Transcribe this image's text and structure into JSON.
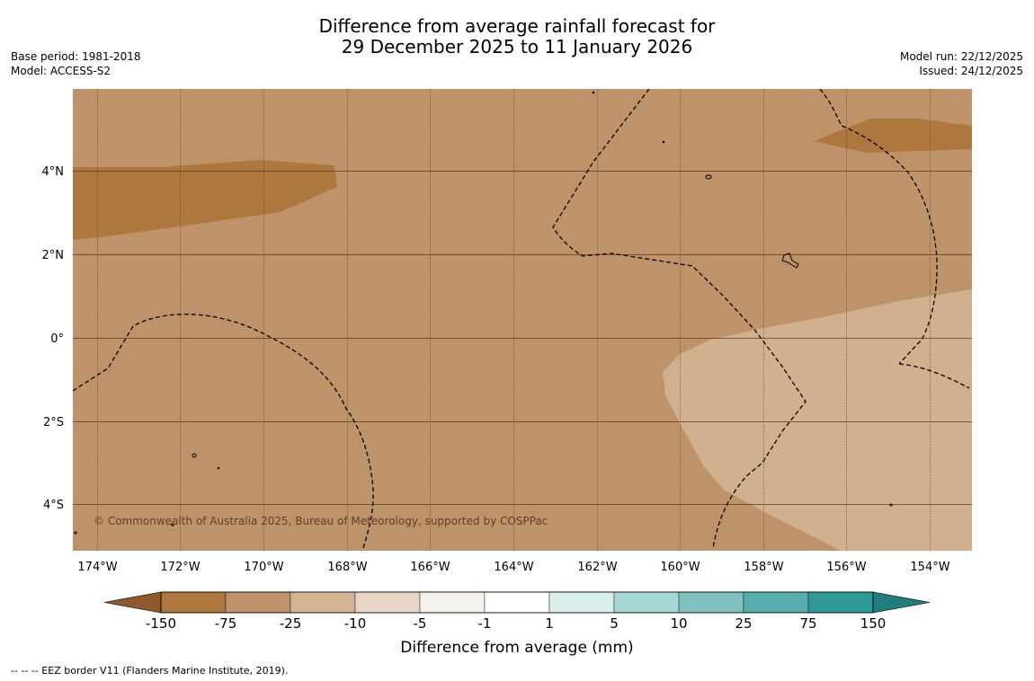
{
  "title": {
    "line1": "Difference from average rainfall forecast for",
    "line2": "29 December 2025 to 11 January 2026"
  },
  "meta_left": {
    "base_period": "Base period: 1981-2018",
    "model": "Model: ACCESS-S2"
  },
  "meta_right": {
    "model_run": "Model run: 22/12/2025",
    "issued": "Issued: 24/12/2025"
  },
  "map": {
    "lon_labels": [
      "174°W",
      "172°W",
      "170°W",
      "168°W",
      "166°W",
      "164°W",
      "162°W",
      "160°W",
      "158°W",
      "156°W",
      "154°W"
    ],
    "lat_labels": [
      "4°N",
      "2°N",
      "0°",
      "2°S",
      "4°S"
    ],
    "copyright": "© Commonwealth of Australia 2025, Bureau of Meteorology, supported by COSPPac",
    "colors": {
      "minus_75_150": "#ae773e",
      "minus_25_75": "#bf936a",
      "minus_10_25": "#d1b08f"
    }
  },
  "colorbar": {
    "ticks": [
      "-150",
      "-75",
      "-25",
      "-10",
      "-5",
      "-1",
      "1",
      "5",
      "10",
      "25",
      "75",
      "150"
    ],
    "colors": [
      "#ae773e",
      "#bf936a",
      "#d4b392",
      "#e8d6c6",
      "#f4f1ec",
      "#ffffff",
      "#d8eeeb",
      "#a8d6d6",
      "#80c2bf",
      "#58acab",
      "#309a98"
    ],
    "extend_low_color": "#8c5a2c",
    "extend_high_color": "#207e7c",
    "label": "Difference from average (mm)"
  },
  "footnote": "--  --  -- EEZ border V11 (Flanders Marine Institute, 2019)."
}
